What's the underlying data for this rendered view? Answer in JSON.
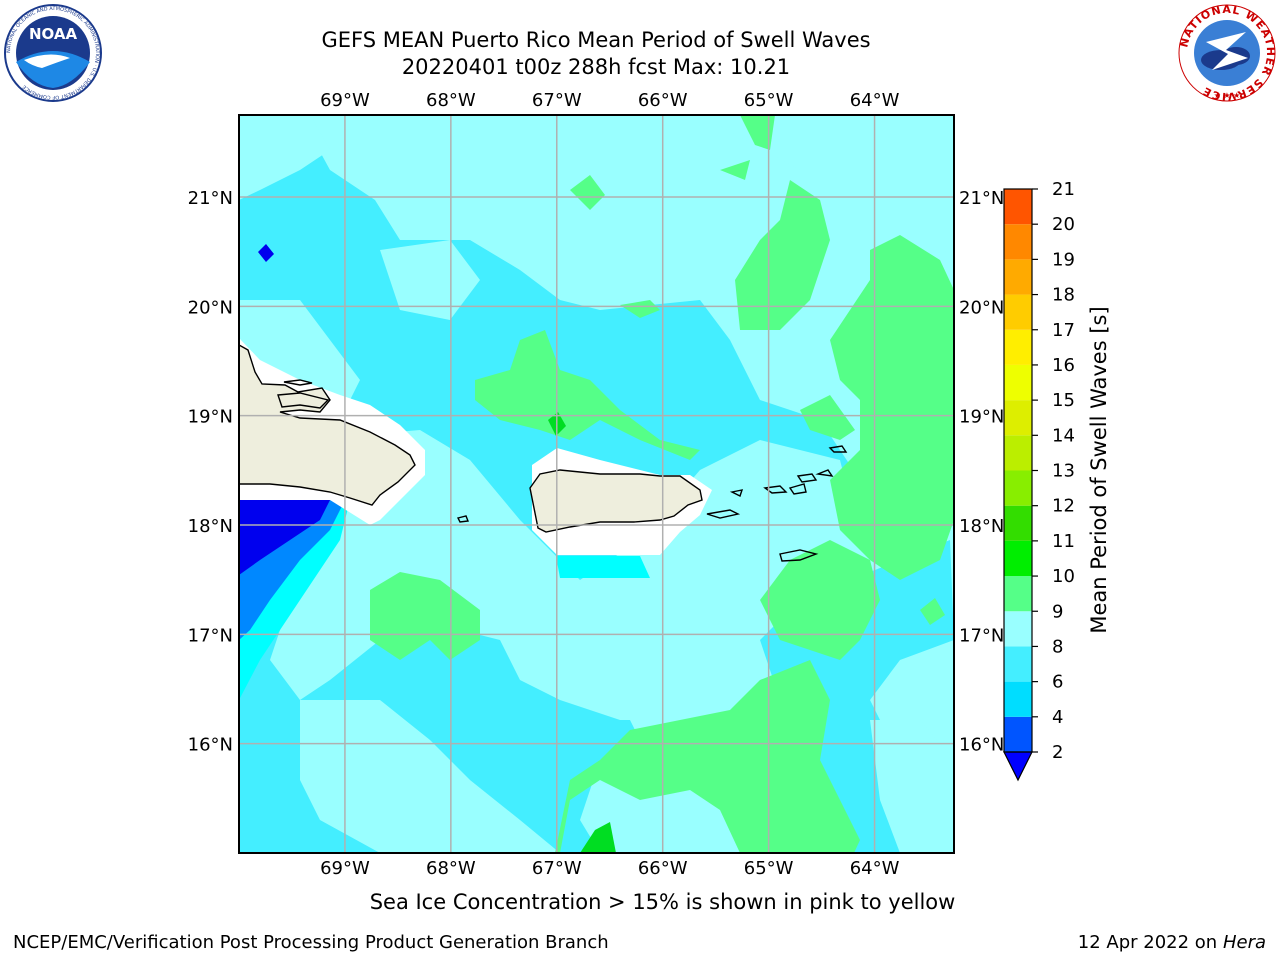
{
  "title": {
    "line1": "GEFS MEAN Puerto Rico Mean Period of Swell Waves",
    "line2": "20220401 t00z 288h fcst   Max: 10.21"
  },
  "logos": {
    "left": {
      "name": "noaa-logo",
      "text": "NOAA",
      "ring_text": "NATIONAL OCEANIC AND ATMOSPHERIC ADMINISTRATION · U.S. DEPARTMENT OF COMMERCE"
    },
    "right": {
      "name": "nws-logo",
      "ring_text": "NATIONAL WEATHER SERVICE"
    }
  },
  "map": {
    "lon_labels": [
      "69°W",
      "68°W",
      "67°W",
      "66°W",
      "65°W",
      "64°W"
    ],
    "lat_labels": [
      "21°N",
      "20°N",
      "19°N",
      "18°N",
      "17°N",
      "16°N"
    ],
    "lon_values": [
      -69,
      -68,
      -67,
      -66,
      -65,
      -64
    ],
    "lat_values": [
      21,
      20,
      19,
      18,
      17,
      16
    ],
    "lon_range": [
      -70,
      -63.25
    ],
    "lat_range": [
      15,
      21.75
    ]
  },
  "colorbar": {
    "label": "Mean Period of Swell Waves [s]",
    "ticks": [
      "2",
      "4",
      "6",
      "8",
      "9",
      "10",
      "11",
      "12",
      "13",
      "14",
      "15",
      "16",
      "17",
      "18",
      "19",
      "20",
      "21"
    ],
    "colors": [
      "#0055ff",
      "#00ddff",
      "#44eeff",
      "#99ffff",
      "#55ff88",
      "#00ee00",
      "#33dd00",
      "#88ee00",
      "#bbee00",
      "#ddee00",
      "#eeff00",
      "#ffee00",
      "#ffcc00",
      "#ffaa00",
      "#ff8800",
      "#ff5500",
      "#ff2200",
      "#ff0000"
    ],
    "extend_color": "#0000ff"
  },
  "palette": {
    "land": "#eeeedd",
    "ocean_light": "#99ffff",
    "ocean_mid": "#44eeff",
    "green": "#55ff88",
    "dark_green": "#00dd22",
    "blue_mid": "#0088ff",
    "blue_dark": "#0000ee",
    "cyan": "#00ffff"
  },
  "note": "Sea Ice Concentration > 15% is shown in pink to yellow",
  "footer": {
    "left": "NCEP/EMC/Verification Post Processing Product Generation Branch",
    "right_date": "12 Apr 2022 on",
    "right_host": "Hera"
  }
}
